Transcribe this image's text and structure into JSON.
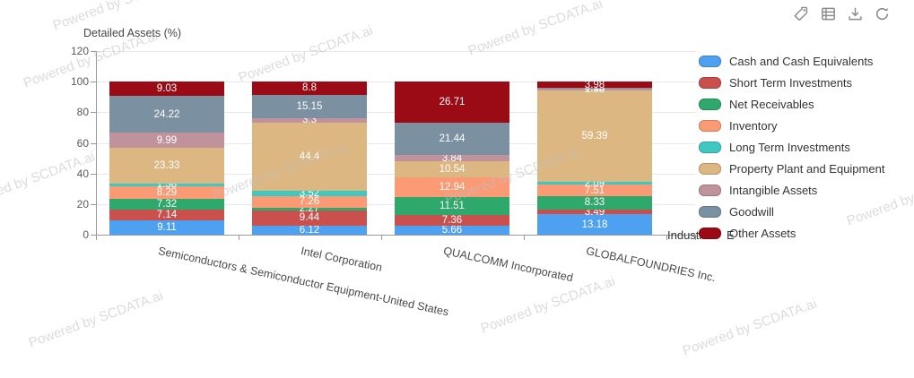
{
  "toolbar": {
    "icons": [
      "tag",
      "table-view",
      "download",
      "refresh"
    ]
  },
  "watermark": {
    "text": "Powered by SCDATA.ai"
  },
  "overlap_text": {
    "before_legend": "Industr",
    "fragment": "E"
  },
  "chart_data": {
    "type": "bar",
    "stacked": true,
    "title": "Detailed Assets (%)",
    "xlabel": "",
    "ylabel": "Detailed Assets (%)",
    "ylim": [
      0,
      120
    ],
    "yticks": [
      0,
      20,
      40,
      60,
      80,
      100,
      120
    ],
    "grid": true,
    "legend_position": "right",
    "value_labels": true,
    "categories": [
      "Semiconductors & Semiconductor Equipment-United States",
      "Intel Corporation",
      "QUALCOMM Incorporated",
      "GLOBALFOUNDRIES Inc."
    ],
    "series": [
      {
        "name": "Cash and Cash Equivalents",
        "color": "#4DA1F0",
        "values": [
          9.11,
          6.12,
          5.66,
          13.18
        ]
      },
      {
        "name": "Short Term Investments",
        "color": "#C9504D",
        "values": [
          7.14,
          9.44,
          7.36,
          3.49
        ]
      },
      {
        "name": "Net Receivables",
        "color": "#2EA86B",
        "values": [
          7.32,
          2.27,
          11.51,
          8.33
        ]
      },
      {
        "name": "Inventory",
        "color": "#FA9B76",
        "values": [
          8.29,
          7.26,
          12.94,
          7.51
        ]
      },
      {
        "name": "Long Term Investments",
        "color": "#3FC8C0",
        "values": [
          1.38,
          3.52,
          0,
          2.09
        ]
      },
      {
        "name": "Property Plant and Equipment",
        "color": "#DDB781",
        "values": [
          23.33,
          44.4,
          10.54,
          59.39
        ]
      },
      {
        "name": "Intangible Assets",
        "color": "#C0929B",
        "values": [
          9.99,
          3.3,
          3.84,
          1.88
        ]
      },
      {
        "name": "Goodwill",
        "color": "#7B90A1",
        "values": [
          24.22,
          15.15,
          21.44,
          0.15
        ]
      },
      {
        "name": "Other Assets",
        "color": "#9A0B15",
        "values": [
          9.03,
          8.8,
          26.71,
          3.98
        ]
      }
    ]
  }
}
